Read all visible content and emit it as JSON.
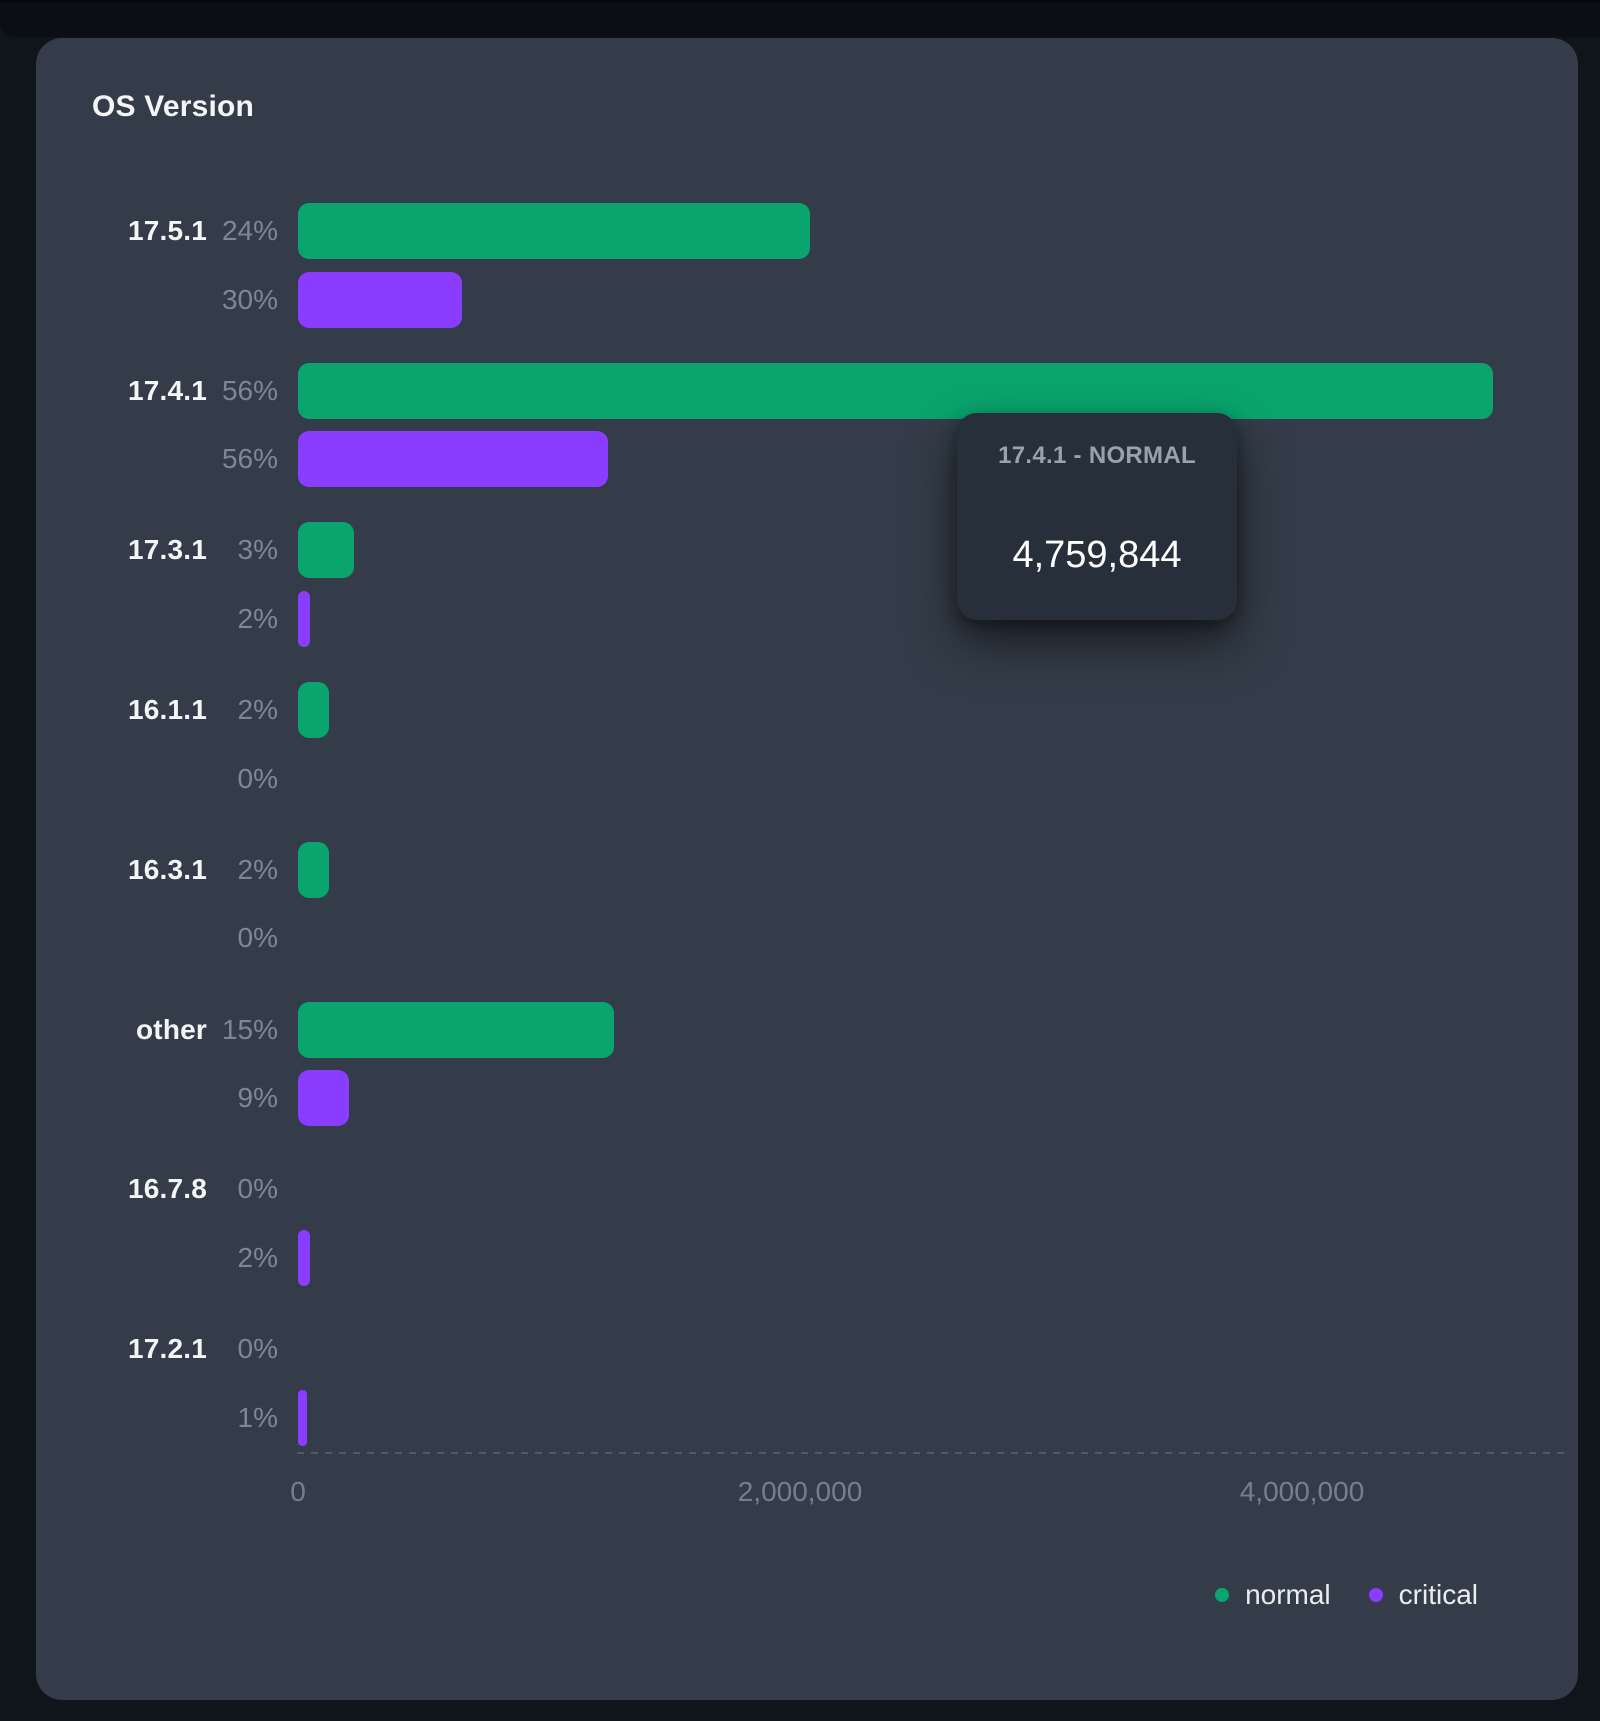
{
  "card": {
    "title": "OS Version"
  },
  "tooltip": {
    "title": "17.4.1 - NORMAL",
    "value": "4,759,844"
  },
  "legend": [
    {
      "label": "normal",
      "color": "#0AA46E"
    },
    {
      "label": "critical",
      "color": "#8B3DFF"
    }
  ],
  "colors": {
    "page_bg": "#10141B",
    "top_band": "#0B0E14",
    "card_bg": "#333C48",
    "normal": "#0AA46E",
    "critical": "#8B3DFF",
    "version_label": "#F3F5F7",
    "pct_label": "#7E8894",
    "tick_label": "#76808D",
    "axis_dash": "#5A6472",
    "tooltip_bg": "#272F3A",
    "tooltip_title": "#98A2AD",
    "tooltip_value": "#FFFFFF",
    "legend_text": "#E9EDF0"
  },
  "chart_data": {
    "type": "bar",
    "orientation": "horizontal",
    "title": "OS Version",
    "categories": [
      "17.5.1",
      "17.4.1",
      "17.3.1",
      "16.1.1",
      "16.3.1",
      "other",
      "16.7.8",
      "17.2.1"
    ],
    "series": [
      {
        "name": "normal",
        "color": "#0AA46E",
        "pct_labels": [
          "24%",
          "56%",
          "3%",
          "2%",
          "2%",
          "15%",
          "0%",
          "0%"
        ],
        "values": [
          2040000,
          4759844,
          225000,
          125000,
          125000,
          1260000,
          0,
          0
        ]
      },
      {
        "name": "critical",
        "color": "#8B3DFF",
        "pct_labels": [
          "30%",
          "56%",
          "2%",
          "0%",
          "0%",
          "9%",
          "2%",
          "1%"
        ],
        "values": [
          655000,
          1235000,
          48000,
          0,
          0,
          205000,
          46000,
          34000
        ]
      }
    ],
    "x_ticks": [
      {
        "label": "0",
        "value": 0
      },
      {
        "label": "2,000,000",
        "value": 2000000
      },
      {
        "label": "4,000,000",
        "value": 4000000
      }
    ],
    "xlim": [
      0,
      5100000
    ],
    "grid": "dashed baseline only",
    "legend_position": "bottom-right",
    "hovered_bar": {
      "category": "17.4.1",
      "series": "normal",
      "value": 4759844
    }
  }
}
